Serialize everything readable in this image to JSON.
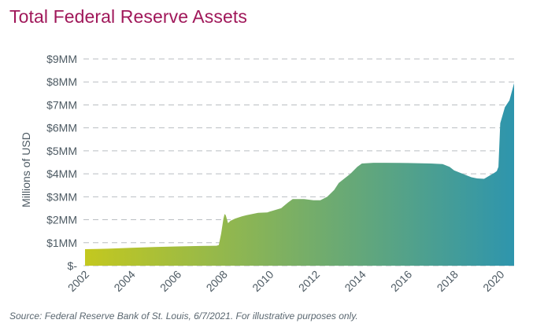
{
  "title": "Total Federal Reserve Assets",
  "source": "Source: Federal Reserve Bank of St. Louis, 6/7/2021. For illustrative purposes only.",
  "chart_data": {
    "type": "area",
    "title": "Total Federal Reserve Assets",
    "ylabel": "Millions of USD",
    "xlabel": "",
    "xlim": [
      2002,
      2020.6
    ],
    "ylim": [
      0,
      9
    ],
    "grid": "horizontal-dashed",
    "fill_gradient": [
      "#c3c81f",
      "#2e95ad"
    ],
    "y_ticks": [
      {
        "value": 0,
        "label": "$-"
      },
      {
        "value": 1,
        "label": "$1MM"
      },
      {
        "value": 2,
        "label": "$2MM"
      },
      {
        "value": 3,
        "label": "$3MM"
      },
      {
        "value": 4,
        "label": "$4MM"
      },
      {
        "value": 5,
        "label": "$5MM"
      },
      {
        "value": 6,
        "label": "$6MM"
      },
      {
        "value": 7,
        "label": "$7MM"
      },
      {
        "value": 8,
        "label": "$8MM"
      },
      {
        "value": 9,
        "label": "$9MM"
      }
    ],
    "x_ticks": [
      {
        "value": 2002,
        "label": "2002"
      },
      {
        "value": 2004,
        "label": "2004"
      },
      {
        "value": 2006,
        "label": "2006"
      },
      {
        "value": 2008,
        "label": "2008"
      },
      {
        "value": 2010,
        "label": "2010"
      },
      {
        "value": 2012,
        "label": "2012"
      },
      {
        "value": 2014,
        "label": "2014"
      },
      {
        "value": 2016,
        "label": "2016"
      },
      {
        "value": 2018,
        "label": "2018"
      },
      {
        "value": 2020,
        "label": "2020"
      }
    ],
    "x": [
      2002.0,
      2003.0,
      2004.0,
      2005.0,
      2006.0,
      2007.0,
      2007.7,
      2007.8,
      2007.9,
      2008.0,
      2008.05,
      2008.1,
      2008.2,
      2008.3,
      2008.5,
      2008.8,
      2009.0,
      2009.5,
      2009.9,
      2010.0,
      2010.5,
      2010.8,
      2011.0,
      2011.5,
      2011.9,
      2012.2,
      2012.5,
      2012.8,
      2013.0,
      2013.5,
      2013.8,
      2014.0,
      2014.5,
      2015.0,
      2016.0,
      2017.0,
      2017.5,
      2017.8,
      2018.0,
      2018.5,
      2018.75,
      2019.0,
      2019.3,
      2019.5,
      2019.75,
      2019.85,
      2019.92,
      2020.0,
      2020.2,
      2020.4,
      2020.6
    ],
    "values": [
      0.72,
      0.74,
      0.78,
      0.81,
      0.84,
      0.86,
      0.87,
      0.9,
      1.4,
      2.05,
      2.25,
      2.2,
      1.85,
      1.95,
      2.05,
      2.15,
      2.2,
      2.3,
      2.32,
      2.35,
      2.5,
      2.75,
      2.9,
      2.9,
      2.85,
      2.85,
      3.0,
      3.3,
      3.6,
      4.0,
      4.3,
      4.45,
      4.48,
      4.48,
      4.47,
      4.45,
      4.42,
      4.3,
      4.15,
      3.95,
      3.85,
      3.8,
      3.78,
      3.9,
      4.05,
      4.12,
      4.3,
      6.2,
      6.9,
      7.2,
      7.95
    ]
  }
}
